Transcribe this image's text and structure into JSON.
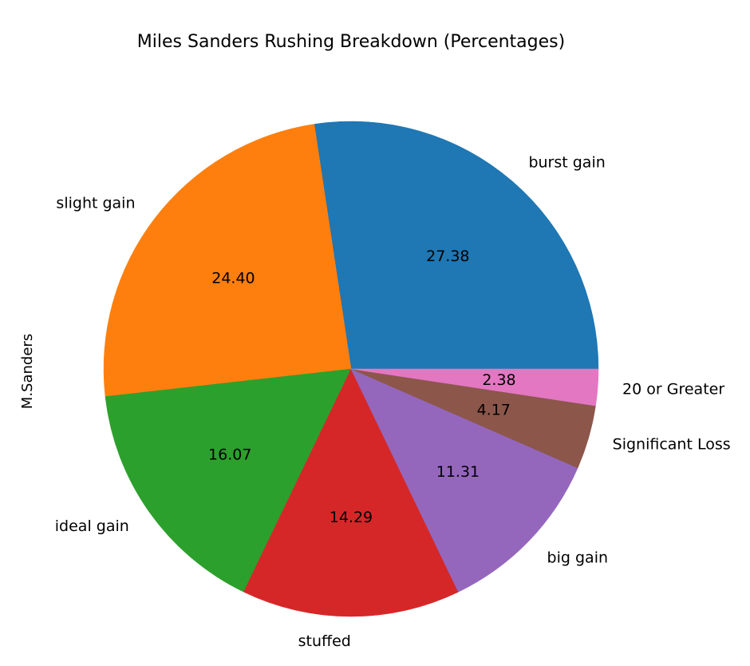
{
  "chart_data": {
    "type": "pie",
    "title": "Miles Sanders Rushing Breakdown (Percentages)",
    "ylabel": "M.Sanders",
    "start_angle_deg": 0,
    "direction": "counterclockwise",
    "value_format": "%.2f",
    "slices": [
      {
        "label": "burst gain",
        "value": 27.38,
        "display": "27.38",
        "color": "#1f77b4"
      },
      {
        "label": "slight gain",
        "value": 24.4,
        "display": "24.40",
        "color": "#ff7f0e"
      },
      {
        "label": "ideal gain",
        "value": 16.07,
        "display": "16.07",
        "color": "#2ca02c"
      },
      {
        "label": "stuffed",
        "value": 14.29,
        "display": "14.29",
        "color": "#d62728"
      },
      {
        "label": "big gain",
        "value": 11.31,
        "display": "11.31",
        "color": "#9467bd"
      },
      {
        "label": "Significant Loss",
        "value": 4.17,
        "display": "4.17",
        "color": "#8c564b"
      },
      {
        "label": "20 or Greater",
        "value": 2.38,
        "display": "2.38",
        "color": "#e377c2"
      }
    ]
  }
}
